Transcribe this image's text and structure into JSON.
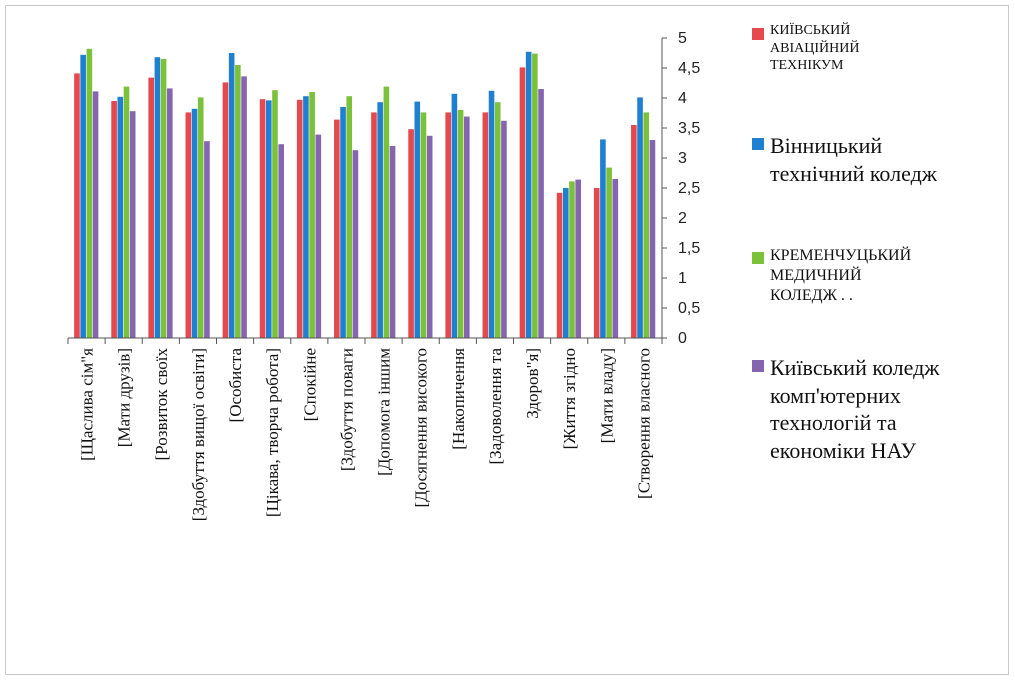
{
  "colors": {
    "series": [
      "#e5484d",
      "#1f7fd0",
      "#7cc13a",
      "#8565b0"
    ],
    "axis": "#555555"
  },
  "chart_data": {
    "type": "bar",
    "categories": [
      "[Щаслива сім\"я",
      "[Мати друзів]",
      "[Розвиток своїх",
      "[Здобуття вищої освіти]",
      "[Особиста",
      "[Цікава, творча робота]",
      "[Спокійне",
      "[Здобуття поваги",
      "[Допомога іншим",
      "[Досягнення високого",
      "[Накопичення",
      "[Задоволення та",
      "Здоров\"я]",
      "[Життя згідно",
      "[Мати владу]",
      "[Створення власного"
    ],
    "series": [
      {
        "name": "КИЇВСЬКИЙ АВІАЦІЙНИЙ ТЕХНІКУМ",
        "values": [
          4.41,
          3.95,
          4.34,
          3.76,
          4.26,
          3.98,
          3.97,
          3.64,
          3.76,
          3.48,
          3.76,
          3.76,
          4.51,
          2.42,
          2.5,
          3.55
        ]
      },
      {
        "name": "Вінницький технічний коледж",
        "values": [
          4.72,
          4.02,
          4.68,
          3.82,
          4.75,
          3.96,
          4.03,
          3.85,
          3.93,
          3.94,
          4.07,
          4.12,
          4.77,
          2.5,
          3.31,
          4.01
        ]
      },
      {
        "name": "КРЕМЕНЧУЦЬКИЙ МЕДИЧНИЙ КОЛЕДЖ",
        "values": [
          4.82,
          4.19,
          4.65,
          4.01,
          4.55,
          4.13,
          4.1,
          4.03,
          4.19,
          3.76,
          3.8,
          3.93,
          4.74,
          2.61,
          2.84,
          3.76
        ]
      },
      {
        "name": "Київський коледж комп'ютерних технологій та економіки НАУ",
        "values": [
          4.11,
          3.78,
          4.16,
          3.28,
          4.36,
          3.23,
          3.39,
          3.13,
          3.2,
          3.37,
          3.69,
          3.62,
          4.15,
          2.64,
          2.65,
          3.3
        ]
      }
    ],
    "y_ticks": [
      "0",
      "0,5",
      "1",
      "1,5",
      "2",
      "2,5",
      "3",
      "3,5",
      "4",
      "4,5",
      "5"
    ],
    "ylim": [
      0,
      5
    ],
    "y_axis_side": "right",
    "grid": false,
    "legend_position": "right"
  },
  "legend": [
    {
      "text": "КИЇВСЬКИЙ\nАВІАЦІЙНИЙ\nТЕХНІКУМ",
      "size": 14
    },
    {
      "text": "Вінницький\nтехнічний коледж",
      "size": 22
    },
    {
      "text": "КРЕМЕНЧУЦЬКИЙ\nМЕДИЧНИЙ\nКОЛЕДЖ          . .",
      "size": 16
    },
    {
      "text": "Київський коледж\nкомп'ютерних\nтехнологій та\nекономіки НАУ",
      "size": 22
    }
  ]
}
